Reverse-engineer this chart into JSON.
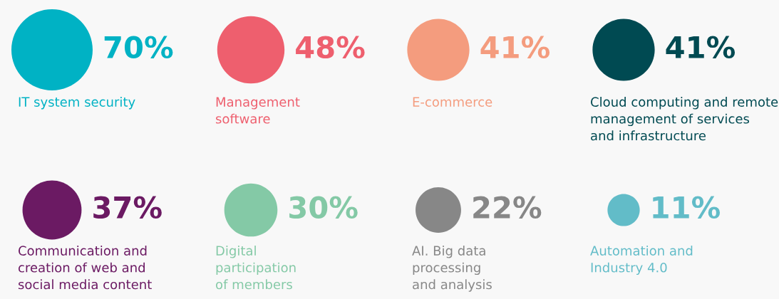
{
  "chart_data": {
    "type": "other",
    "categories": [
      "IT system security",
      "Management\nsoftware",
      "E-commerce",
      "Cloud computing and remote\nmanagement of services\nand infrastructure",
      "Communication and\ncreation of web and\nsocial media content",
      "Digital\nparticipation\nof members",
      "AI. Big data\nprocessing\nand analysis",
      "Automation and\nIndustry 4.0"
    ],
    "values": [
      70,
      48,
      41,
      41,
      37,
      30,
      22,
      11
    ],
    "value_labels": [
      "70%",
      "48%",
      "41%",
      "41%",
      "37%",
      "30%",
      "22%",
      "11%"
    ],
    "colors": [
      "#00b2c4",
      "#ee5f6e",
      "#f49c7e",
      "#004a52",
      "#6b1a63",
      "#84c9a6",
      "#878787",
      "#62bcc8"
    ]
  }
}
